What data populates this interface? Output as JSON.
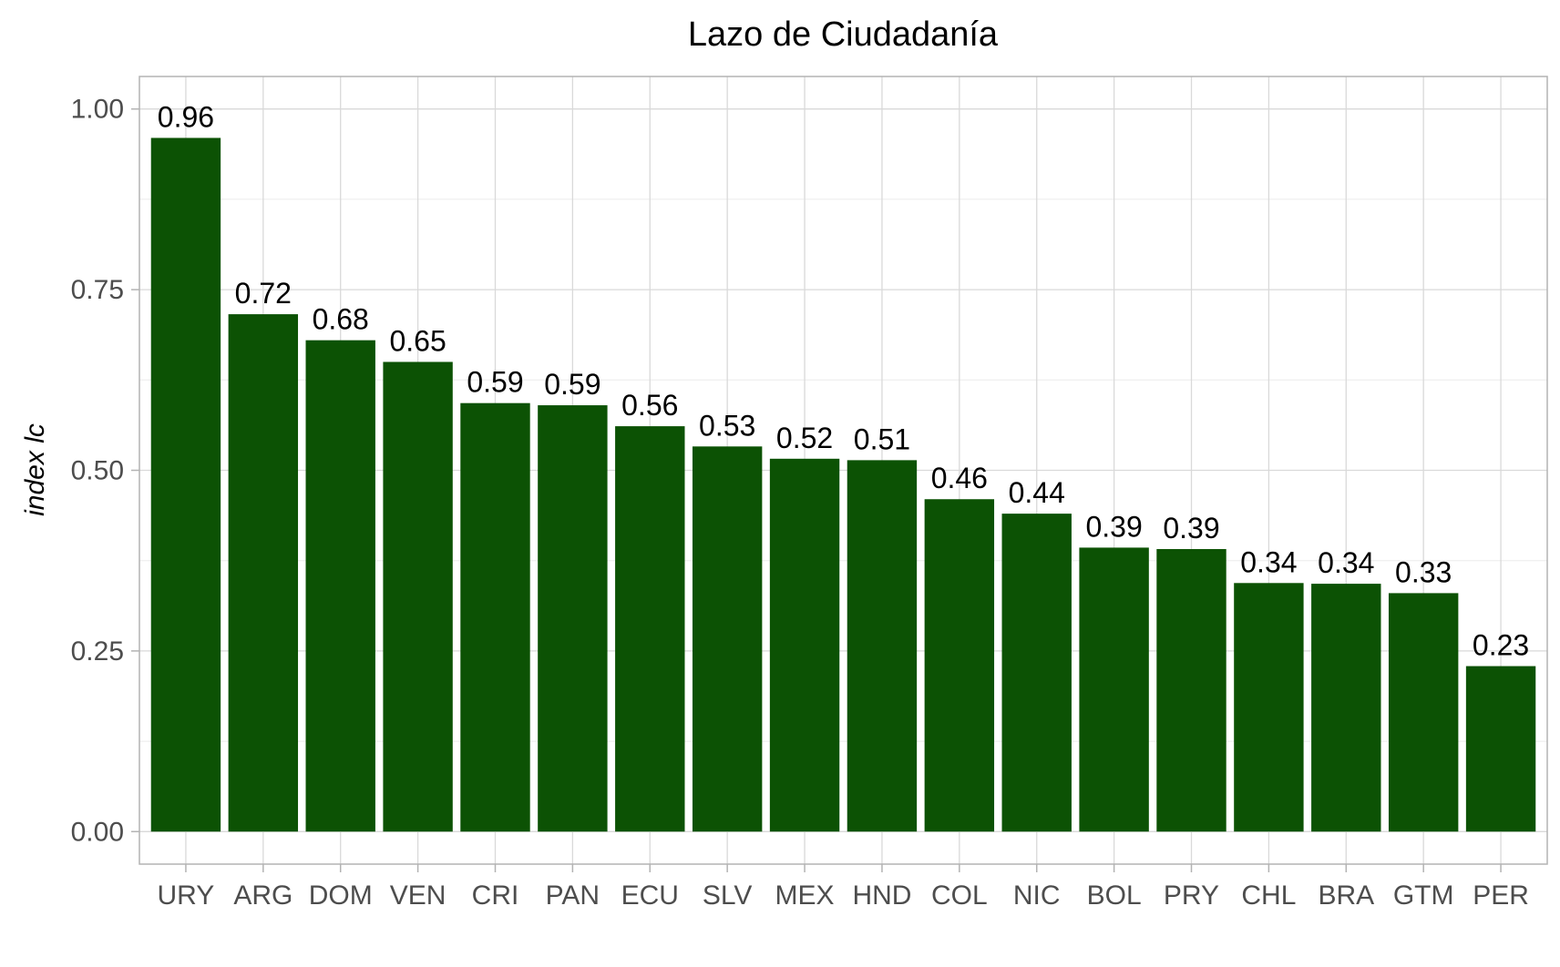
{
  "chart_data": {
    "type": "bar",
    "title": "Lazo de Ciudadanía",
    "xlabel": "",
    "ylabel": "index lc",
    "categories": [
      "URY",
      "ARG",
      "DOM",
      "VEN",
      "CRI",
      "PAN",
      "ECU",
      "SLV",
      "MEX",
      "HND",
      "COL",
      "NIC",
      "BOL",
      "PRY",
      "CHL",
      "BRA",
      "GTM",
      "PER"
    ],
    "values": [
      0.96,
      0.716,
      0.68,
      0.65,
      0.593,
      0.59,
      0.561,
      0.533,
      0.516,
      0.514,
      0.46,
      0.44,
      0.393,
      0.391,
      0.344,
      0.343,
      0.33,
      0.229
    ],
    "data_labels": [
      "0.96",
      "0.72",
      "0.68",
      "0.65",
      "0.59",
      "0.59",
      "0.56",
      "0.53",
      "0.52",
      "0.51",
      "0.46",
      "0.44",
      "0.39",
      "0.39",
      "0.34",
      "0.34",
      "0.33",
      "0.23"
    ],
    "ylim": [
      -0.045,
      1.045
    ],
    "yticks": [
      0,
      0.25,
      0.5,
      0.75,
      1
    ],
    "ytick_labels": [
      "0.00",
      "0.25",
      "0.50",
      "0.75",
      "1.00"
    ],
    "grid": true,
    "legend": "none",
    "bar_color": "#0c5204"
  }
}
